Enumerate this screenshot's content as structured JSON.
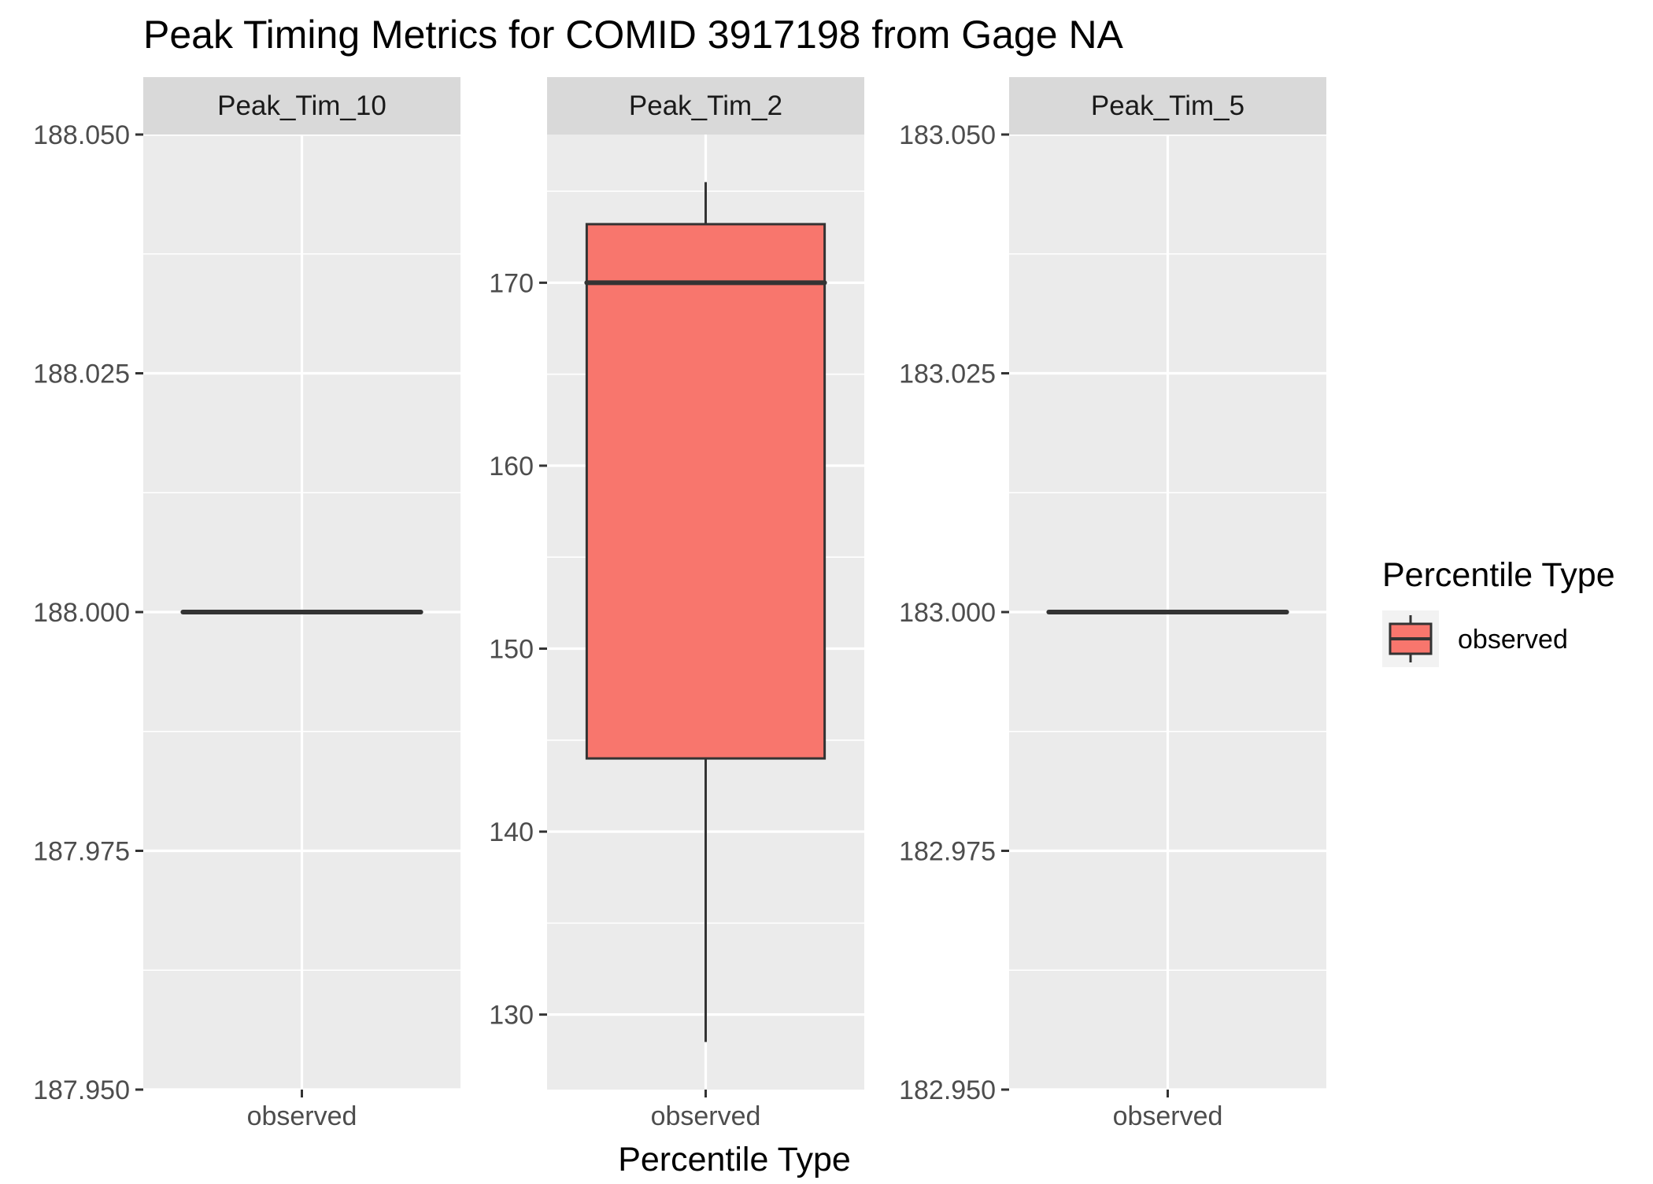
{
  "chart_data": {
    "type": "boxplot",
    "title": "Peak Timing Metrics for COMID 3917198 from Gage NA",
    "xlabel": "Percentile Type",
    "ylabel": "",
    "grid": true,
    "legend": {
      "title": "Percentile Type",
      "placement": "right",
      "entries": [
        {
          "label": "observed",
          "color": "#F8766D"
        }
      ]
    },
    "fill_color": "#F8766D",
    "panel_color": "#EBEBEB",
    "strip_color": "#D9D9D9",
    "line_color": "#333333",
    "panels": [
      {
        "name": "Peak_Tim_10",
        "category": "observed",
        "ylim": [
          187.95,
          188.05
        ],
        "yticks": [
          187.95,
          187.975,
          188.0,
          188.025,
          188.05
        ],
        "ytick_labels": [
          "187.950",
          "187.975",
          "188.000",
          "188.025",
          "188.050"
        ],
        "box": {
          "min": 188,
          "q1": 188,
          "median": 188,
          "q3": 188,
          "max": 188
        }
      },
      {
        "name": "Peak_Tim_2",
        "category": "observed",
        "ylim": [
          125.9,
          178.1
        ],
        "yticks": [
          130,
          140,
          150,
          160,
          170
        ],
        "ytick_labels": [
          "130",
          "140",
          "150",
          "160",
          "170"
        ],
        "box": {
          "min": 128.5,
          "q1": 144,
          "median": 170,
          "q3": 173.2,
          "max": 175.5
        }
      },
      {
        "name": "Peak_Tim_5",
        "category": "observed",
        "ylim": [
          182.95,
          183.05
        ],
        "yticks": [
          182.95,
          182.975,
          183.0,
          183.025,
          183.05
        ],
        "ytick_labels": [
          "182.950",
          "182.975",
          "183.000",
          "183.025",
          "183.050"
        ],
        "box": {
          "min": 183,
          "q1": 183,
          "median": 183,
          "q3": 183,
          "max": 183
        }
      }
    ]
  }
}
